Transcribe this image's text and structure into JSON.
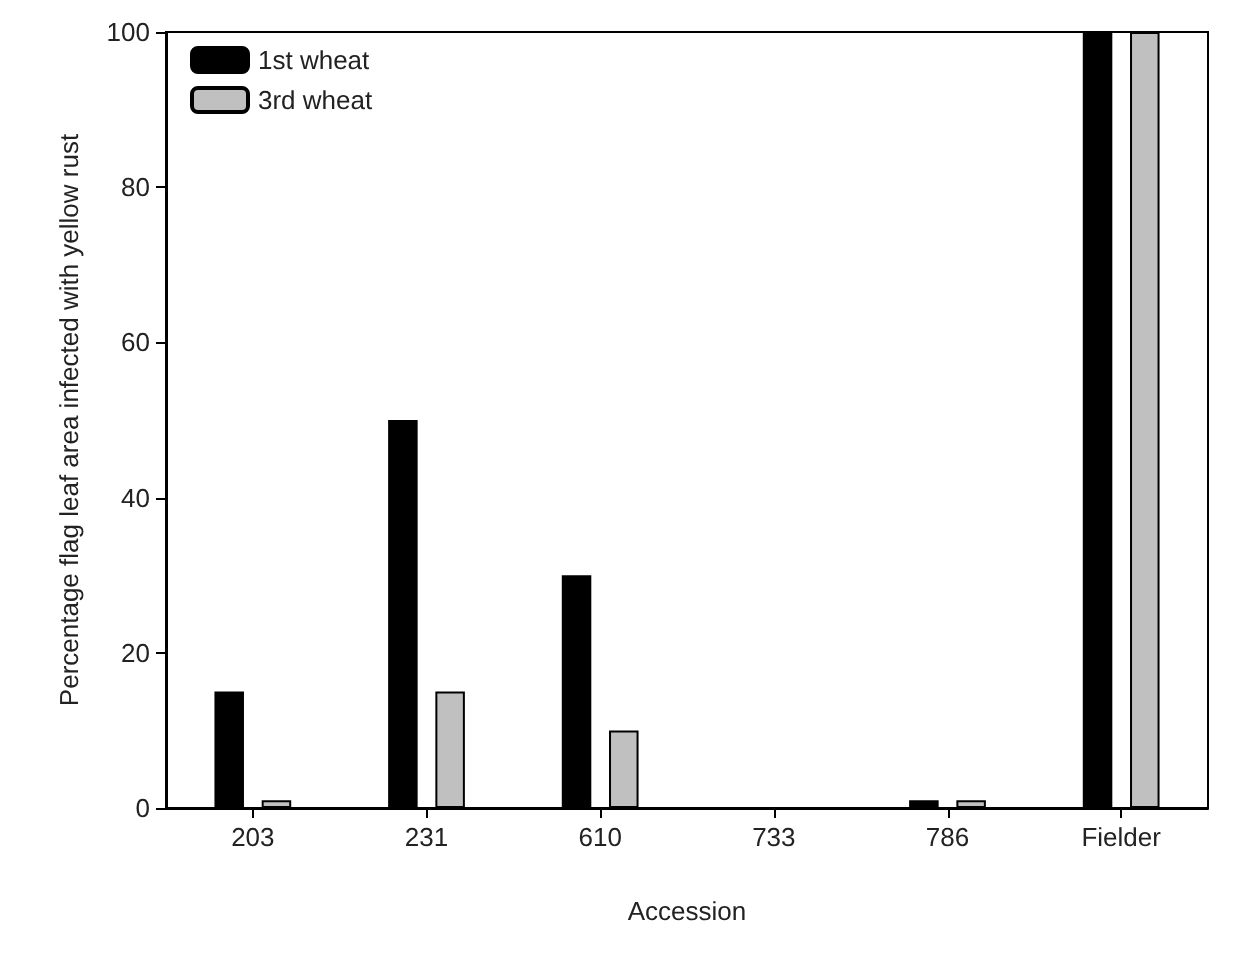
{
  "chart_data": {
    "type": "bar",
    "xlabel": "Accession",
    "ylabel": "Percentage flag leaf area infected with yellow rust",
    "categories": [
      "203",
      "231",
      "610",
      "733",
      "786",
      "Fielder"
    ],
    "series": [
      {
        "name": "1st wheat",
        "color": "#000000",
        "values": [
          15,
          50,
          30,
          0,
          1,
          100
        ]
      },
      {
        "name": "3rd wheat",
        "color": "#c0c0c0",
        "values": [
          1,
          15,
          10,
          0,
          1,
          100
        ]
      }
    ],
    "ylim": [
      0,
      100
    ],
    "yticks": [
      0,
      20,
      40,
      60,
      80,
      100
    ],
    "grid": false,
    "legend": "top left"
  }
}
